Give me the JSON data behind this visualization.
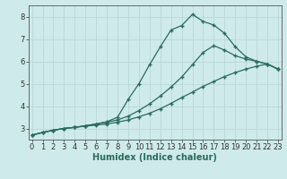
{
  "background_color": "#ceeaea",
  "grid_color": "#b8d8d8",
  "line_color": "#2a6b5e",
  "xlabel": "Humidex (Indice chaleur)",
  "xlabel_fontsize": 7,
  "tick_fontsize": 6,
  "yticks": [
    3,
    4,
    5,
    6,
    7,
    8
  ],
  "xticks": [
    0,
    1,
    2,
    3,
    4,
    5,
    6,
    7,
    8,
    9,
    10,
    11,
    12,
    13,
    14,
    15,
    16,
    17,
    18,
    19,
    20,
    21,
    22,
    23
  ],
  "xlim": [
    -0.3,
    23.3
  ],
  "ylim": [
    2.5,
    8.5
  ],
  "line1_x": [
    0,
    1,
    2,
    3,
    4,
    5,
    6,
    7,
    8,
    9,
    10,
    11,
    12,
    13,
    14,
    15,
    16,
    17,
    18,
    19,
    20,
    21,
    22,
    23
  ],
  "line1_y": [
    2.7,
    2.82,
    2.92,
    3.0,
    3.05,
    3.1,
    3.15,
    3.2,
    3.28,
    3.38,
    3.52,
    3.68,
    3.88,
    4.12,
    4.38,
    4.62,
    4.88,
    5.1,
    5.32,
    5.5,
    5.65,
    5.78,
    5.88,
    5.65
  ],
  "line2_x": [
    0,
    1,
    2,
    3,
    4,
    5,
    6,
    7,
    8,
    9,
    10,
    11,
    12,
    13,
    14,
    15,
    16,
    17,
    18,
    19,
    20,
    21,
    22,
    23
  ],
  "line2_y": [
    2.7,
    2.82,
    2.92,
    3.0,
    3.05,
    3.12,
    3.2,
    3.28,
    3.38,
    3.55,
    3.8,
    4.1,
    4.45,
    4.85,
    5.3,
    5.85,
    6.4,
    6.7,
    6.5,
    6.25,
    6.1,
    6.0,
    5.88,
    5.65
  ],
  "line3_x": [
    0,
    1,
    2,
    3,
    4,
    5,
    6,
    7,
    8,
    9,
    10,
    11,
    12,
    13,
    14,
    15,
    16,
    17,
    18,
    19,
    20,
    21,
    22,
    23
  ],
  "line3_y": [
    2.7,
    2.82,
    2.92,
    3.0,
    3.05,
    3.12,
    3.2,
    3.3,
    3.5,
    4.3,
    5.0,
    5.85,
    6.65,
    7.4,
    7.6,
    8.1,
    7.78,
    7.62,
    7.25,
    6.65,
    6.2,
    6.0,
    5.88,
    5.65
  ]
}
